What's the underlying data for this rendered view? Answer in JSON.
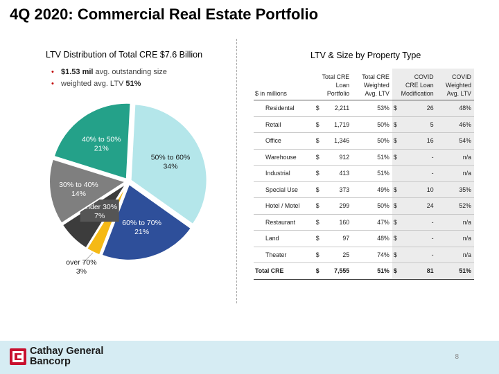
{
  "slide": {
    "title": "4Q 2020: Commercial Real Estate Portfolio",
    "page_number": "8"
  },
  "left": {
    "title": "LTV Distribution of Total CRE $7.6 Billion",
    "bullets": [
      {
        "strong": "$1.53 mil",
        "text": " avg. outstanding size"
      },
      {
        "text": "weighted avg. LTV ",
        "strong": "51%"
      }
    ]
  },
  "chart_data": {
    "type": "pie",
    "title": "LTV Distribution of Total CRE $7.6 Billion",
    "slices": [
      {
        "label": "50% to 60%",
        "value": 34,
        "value_label": "34%",
        "color": "#b4e6ea"
      },
      {
        "label": "60% to 70%",
        "value": 21,
        "value_label": "21%",
        "color": "#2e4f9a"
      },
      {
        "label": "over 70%",
        "value": 3,
        "value_label": "3%",
        "color": "#f5b915"
      },
      {
        "label": "under 30%",
        "value": 7,
        "value_label": "7%",
        "color": "#3c3c3c"
      },
      {
        "label": "30% to 40%",
        "value": 14,
        "value_label": "14%",
        "color": "#7f7f7f"
      },
      {
        "label": "40% to 50%",
        "value": 21,
        "value_label": "21%",
        "color": "#24a189"
      }
    ]
  },
  "right": {
    "title": "LTV & Size by Property Type"
  },
  "table": {
    "headers": {
      "units": "$ in millions",
      "col1": [
        "Total CRE",
        "Loan",
        "Portfolio"
      ],
      "col2": [
        "Total CRE",
        "Weighted",
        "Avg. LTV"
      ],
      "col3": [
        "COVID",
        "CRE Loan",
        "Modification"
      ],
      "col4": [
        "COVID",
        "Weighted",
        "Avg. LTV"
      ]
    },
    "rows": [
      {
        "name": "Residental",
        "dollar1": "$",
        "portfolio": "2,211",
        "ltv": "53%",
        "dollar2": "$",
        "covid": "26",
        "covid_ltv": "48%"
      },
      {
        "name": "Retail",
        "dollar1": "$",
        "portfolio": "1,719",
        "ltv": "50%",
        "dollar2": "$",
        "covid": "5",
        "covid_ltv": "46%"
      },
      {
        "name": "Office",
        "dollar1": "$",
        "portfolio": "1,346",
        "ltv": "50%",
        "dollar2": "$",
        "covid": "16",
        "covid_ltv": "54%"
      },
      {
        "name": "Warehouse",
        "dollar1": "$",
        "portfolio": "912",
        "ltv": "51%",
        "dollar2": "$",
        "covid": "-",
        "covid_ltv": "n/a"
      },
      {
        "name": "Industrial",
        "dollar1": "$",
        "portfolio": "413",
        "ltv": "51%",
        "dollar2": "",
        "covid": "-",
        "covid_ltv": "n/a"
      },
      {
        "name": "Special Use",
        "dollar1": "$",
        "portfolio": "373",
        "ltv": "49%",
        "dollar2": "$",
        "covid": "10",
        "covid_ltv": "35%"
      },
      {
        "name": "Hotel / Motel",
        "dollar1": "$",
        "portfolio": "299",
        "ltv": "50%",
        "dollar2": "$",
        "covid": "24",
        "covid_ltv": "52%"
      },
      {
        "name": "Restaurant",
        "dollar1": "$",
        "portfolio": "160",
        "ltv": "47%",
        "dollar2": "$",
        "covid": "-",
        "covid_ltv": "n/a"
      },
      {
        "name": "Land",
        "dollar1": "$",
        "portfolio": "97",
        "ltv": "48%",
        "dollar2": "$",
        "covid": "-",
        "covid_ltv": "n/a"
      },
      {
        "name": "Theater",
        "dollar1": "$",
        "portfolio": "25",
        "ltv": "74%",
        "dollar2": "$",
        "covid": "-",
        "covid_ltv": "n/a"
      }
    ],
    "total": {
      "name": "Total CRE",
      "dollar1": "$",
      "portfolio": "7,555",
      "ltv": "51%",
      "dollar2": "$",
      "covid": "81",
      "covid_ltv": "51%"
    }
  },
  "footer": {
    "logo_line1": "Cathay General",
    "logo_line2": "Bancorp",
    "logo_icon": "cathay-logo-icon",
    "brand_color": "#c8102e"
  }
}
